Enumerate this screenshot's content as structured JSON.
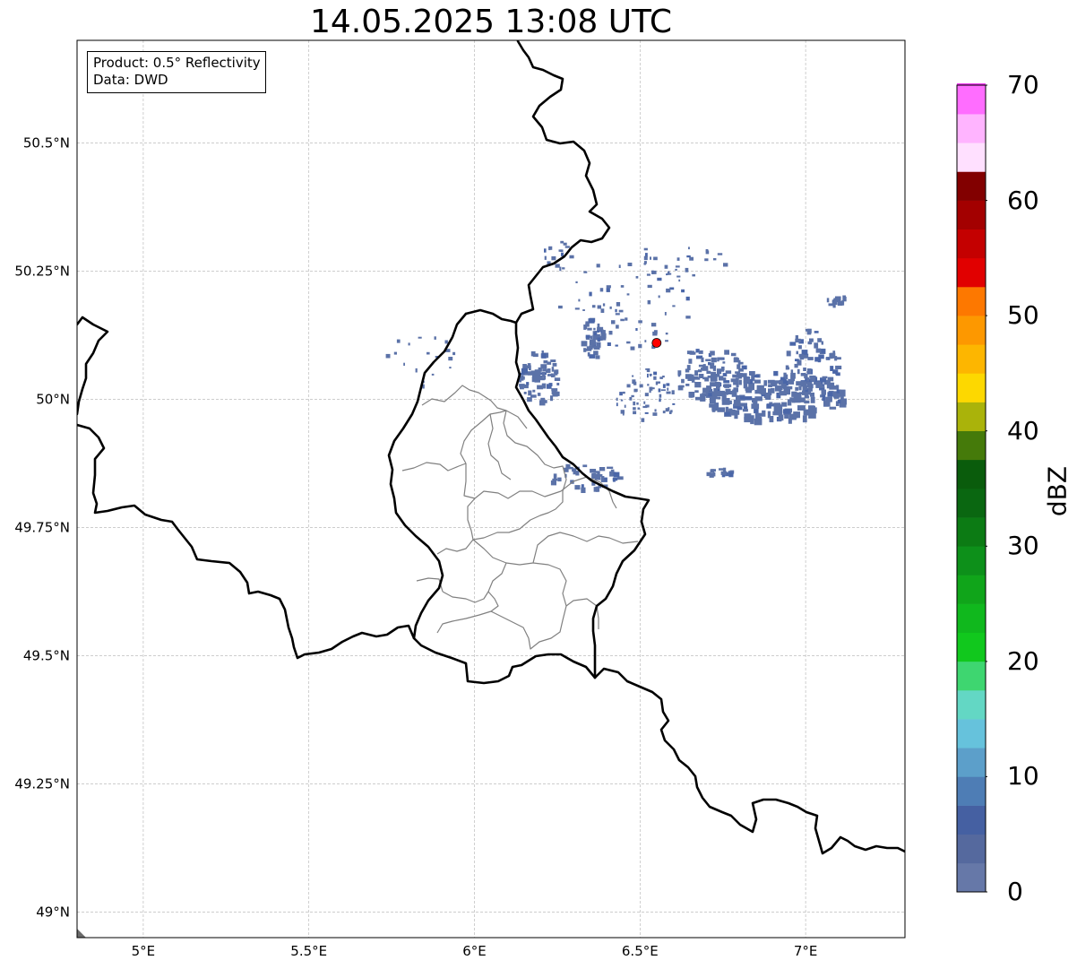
{
  "title": "14.05.2025 13:08 UTC",
  "info": {
    "product": "Product: 0.5° Reflectivity",
    "data": "Data: DWD"
  },
  "map": {
    "lon_range": [
      4.8,
      7.3
    ],
    "lat_range": [
      48.95,
      50.7
    ],
    "lon_ticks": [
      {
        "value": 5.0,
        "label": "5°E"
      },
      {
        "value": 5.5,
        "label": "5.5°E"
      },
      {
        "value": 6.0,
        "label": "6°E"
      },
      {
        "value": 6.5,
        "label": "6.5°E"
      },
      {
        "value": 7.0,
        "label": "7°E"
      }
    ],
    "lat_ticks": [
      {
        "value": 49.0,
        "label": "49°N"
      },
      {
        "value": 49.25,
        "label": "49.25°N"
      },
      {
        "value": 49.5,
        "label": "49.5°N"
      },
      {
        "value": 49.75,
        "label": "49.75°N"
      },
      {
        "value": 50.0,
        "label": "50°N"
      },
      {
        "value": 50.25,
        "label": "50.25°N"
      },
      {
        "value": 50.5,
        "label": "50.5°N"
      }
    ],
    "grid": true,
    "radar_site": {
      "lon": 6.55,
      "lat": 50.11,
      "color": "#ff0000"
    },
    "echo_color": "#5b72a8",
    "echo_color_dark": "#4a66a8"
  },
  "colorbar": {
    "label": "dBZ",
    "min": 0,
    "max": 70,
    "ticks": [
      "0",
      "10",
      "20",
      "30",
      "40",
      "50",
      "60",
      "70"
    ],
    "colors": [
      "#6678a8",
      "#55699e",
      "#4560a2",
      "#4e7db5",
      "#5c9fca",
      "#66c2dc",
      "#63d7c4",
      "#3ed670",
      "#11c81d",
      "#10b81d",
      "#10a51a",
      "#0d901a",
      "#0c7b14",
      "#0a6711",
      "#0a5c0c",
      "#457a0a",
      "#aab30a",
      "#fdd800",
      "#fdb600",
      "#fd9800",
      "#fd7800",
      "#e10000",
      "#c40000",
      "#a30000",
      "#820000",
      "#ffe0ff",
      "#ffb4ff",
      "#ff6dff",
      "#ec36ec"
    ]
  }
}
